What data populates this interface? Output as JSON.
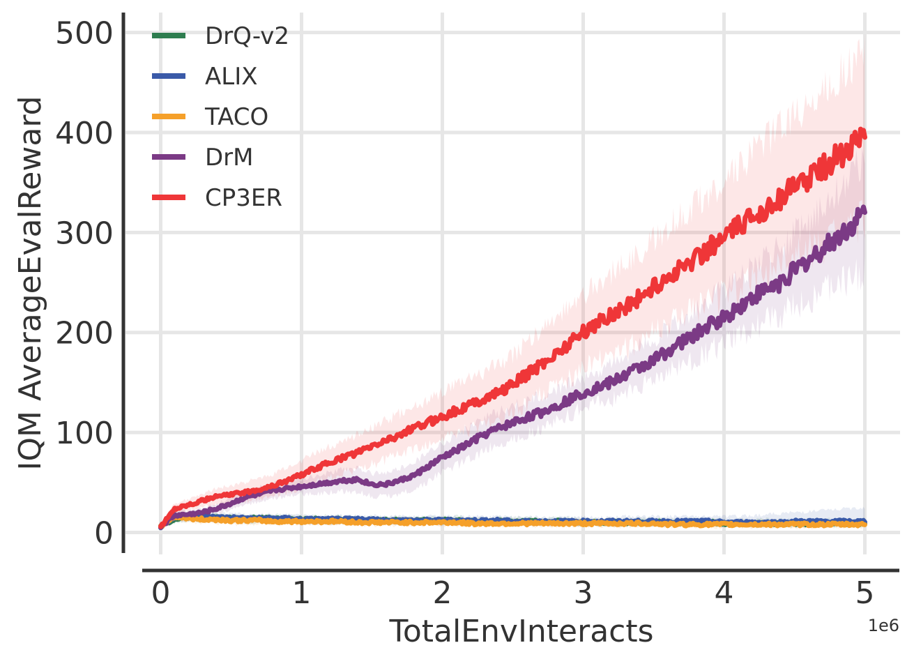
{
  "chart_data": {
    "type": "line",
    "title": "",
    "xlabel": "TotalEnvInteracts",
    "ylabel": "IQM AverageEvalReward",
    "x_offset_label": "1e6",
    "xlim": [
      -0.25,
      5.25
    ],
    "ylim": [
      -22,
      520
    ],
    "x_ticks": [
      0,
      1,
      2,
      3,
      4,
      5
    ],
    "x_tick_labels": [
      "0",
      "1",
      "2",
      "3",
      "4",
      "5"
    ],
    "y_ticks": [
      0,
      100,
      200,
      300,
      400,
      500
    ],
    "y_tick_labels": [
      "0",
      "100",
      "200",
      "300",
      "400",
      "500"
    ],
    "grid": true,
    "legend_position": "top-left",
    "x": [
      0,
      0.1,
      0.2,
      0.3,
      0.4,
      0.5,
      0.6,
      0.7,
      0.8,
      0.9,
      1.0,
      1.1,
      1.2,
      1.3,
      1.4,
      1.5,
      1.6,
      1.7,
      1.8,
      1.9,
      2.0,
      2.1,
      2.2,
      2.3,
      2.4,
      2.5,
      2.6,
      2.7,
      2.8,
      2.9,
      3.0,
      3.1,
      3.2,
      3.3,
      3.4,
      3.5,
      3.6,
      3.7,
      3.8,
      3.9,
      4.0,
      4.1,
      4.2,
      4.3,
      4.4,
      4.5,
      4.6,
      4.7,
      4.8,
      4.9,
      5.0
    ],
    "series": [
      {
        "name": "DrQ-v2",
        "color": "#2e7d4f",
        "values": [
          6,
          14,
          15,
          15,
          15,
          14,
          14,
          14,
          14,
          13,
          13,
          13,
          13,
          13,
          12,
          12,
          12,
          12,
          12,
          12,
          12,
          12,
          11,
          11,
          11,
          11,
          11,
          11,
          11,
          11,
          10,
          10,
          10,
          10,
          10,
          10,
          10,
          10,
          10,
          10,
          9,
          9,
          9,
          9,
          9,
          9,
          9,
          9,
          9,
          9,
          9
        ],
        "lower": [
          4,
          10,
          11,
          11,
          11,
          10,
          10,
          10,
          10,
          10,
          10,
          10,
          9,
          9,
          9,
          9,
          9,
          9,
          9,
          9,
          9,
          9,
          8,
          8,
          8,
          8,
          8,
          8,
          8,
          8,
          7,
          7,
          7,
          7,
          7,
          7,
          7,
          7,
          7,
          7,
          6,
          6,
          6,
          6,
          6,
          6,
          6,
          6,
          6,
          6,
          6
        ],
        "upper": [
          8,
          18,
          19,
          19,
          19,
          18,
          18,
          18,
          18,
          17,
          17,
          17,
          17,
          17,
          16,
          16,
          16,
          16,
          16,
          16,
          16,
          16,
          15,
          15,
          15,
          15,
          15,
          15,
          15,
          15,
          14,
          14,
          14,
          14,
          14,
          14,
          14,
          14,
          14,
          14,
          13,
          13,
          13,
          13,
          13,
          13,
          13,
          13,
          13,
          13,
          13
        ]
      },
      {
        "name": "ALIX",
        "color": "#3a5aa8",
        "values": [
          6,
          15,
          16,
          16,
          15,
          15,
          14,
          14,
          14,
          14,
          13,
          13,
          13,
          13,
          13,
          13,
          12,
          12,
          12,
          12,
          12,
          12,
          12,
          12,
          12,
          11,
          11,
          11,
          11,
          11,
          11,
          11,
          11,
          11,
          11,
          11,
          11,
          11,
          11,
          11,
          10,
          10,
          10,
          10,
          10,
          11,
          11,
          11,
          11,
          11,
          11
        ],
        "lower": [
          4,
          11,
          12,
          12,
          11,
          11,
          10,
          10,
          10,
          10,
          9,
          9,
          9,
          9,
          9,
          9,
          8,
          8,
          8,
          8,
          8,
          8,
          8,
          8,
          8,
          7,
          7,
          7,
          7,
          7,
          7,
          7,
          7,
          7,
          7,
          7,
          7,
          7,
          7,
          7,
          6,
          6,
          6,
          6,
          6,
          6,
          6,
          6,
          6,
          6,
          6
        ],
        "upper": [
          8,
          19,
          20,
          20,
          19,
          19,
          18,
          18,
          18,
          18,
          17,
          17,
          17,
          17,
          17,
          17,
          16,
          16,
          16,
          16,
          16,
          16,
          16,
          16,
          16,
          15,
          15,
          15,
          15,
          15,
          15,
          15,
          15,
          16,
          16,
          16,
          16,
          16,
          16,
          16,
          16,
          16,
          17,
          18,
          19,
          20,
          21,
          22,
          23,
          24,
          25
        ]
      },
      {
        "name": "TACO",
        "color": "#f5a02a",
        "values": [
          6,
          16,
          14,
          13,
          13,
          12,
          12,
          12,
          11,
          11,
          11,
          11,
          11,
          11,
          10,
          10,
          10,
          10,
          10,
          10,
          10,
          10,
          9,
          9,
          9,
          9,
          9,
          9,
          9,
          9,
          9,
          9,
          9,
          9,
          9,
          9,
          8,
          8,
          8,
          8,
          8,
          8,
          8,
          8,
          8,
          8,
          8,
          8,
          8,
          8,
          8
        ],
        "lower": [
          4,
          12,
          10,
          9,
          9,
          8,
          8,
          8,
          8,
          8,
          8,
          8,
          8,
          8,
          7,
          7,
          7,
          7,
          7,
          7,
          7,
          7,
          6,
          6,
          6,
          6,
          6,
          6,
          6,
          6,
          6,
          6,
          6,
          6,
          6,
          6,
          5,
          5,
          5,
          5,
          5,
          5,
          5,
          5,
          5,
          5,
          5,
          5,
          5,
          5,
          5
        ],
        "upper": [
          8,
          20,
          18,
          17,
          17,
          16,
          16,
          16,
          15,
          15,
          15,
          15,
          15,
          15,
          14,
          14,
          14,
          14,
          14,
          14,
          14,
          14,
          13,
          13,
          13,
          13,
          13,
          13,
          13,
          13,
          13,
          13,
          13,
          13,
          13,
          13,
          12,
          12,
          12,
          12,
          12,
          12,
          12,
          12,
          12,
          12,
          12,
          12,
          12,
          12,
          12
        ]
      },
      {
        "name": "DrM",
        "color": "#7b3a85",
        "values": [
          6,
          17,
          18,
          20,
          24,
          29,
          35,
          38,
          42,
          44,
          46,
          48,
          50,
          52,
          53,
          48,
          48,
          52,
          57,
          66,
          75,
          82,
          90,
          98,
          104,
          110,
          115,
          120,
          126,
          133,
          140,
          145,
          150,
          158,
          165,
          172,
          182,
          190,
          198,
          208,
          215,
          225,
          235,
          243,
          250,
          262,
          272,
          283,
          295,
          306,
          320
        ],
        "lower": [
          4,
          13,
          14,
          16,
          19,
          23,
          28,
          31,
          34,
          36,
          38,
          39,
          40,
          41,
          41,
          36,
          36,
          39,
          43,
          51,
          60,
          67,
          74,
          82,
          88,
          94,
          99,
          104,
          110,
          117,
          124,
          129,
          133,
          140,
          146,
          152,
          160,
          167,
          174,
          182,
          188,
          196,
          204,
          211,
          217,
          226,
          233,
          240,
          248,
          254,
          260
        ],
        "upper": [
          8,
          21,
          22,
          24,
          29,
          35,
          42,
          45,
          50,
          52,
          54,
          57,
          60,
          63,
          64,
          59,
          59,
          64,
          70,
          80,
          90,
          97,
          106,
          114,
          120,
          126,
          131,
          136,
          142,
          149,
          156,
          161,
          168,
          177,
          185,
          193,
          204,
          213,
          222,
          234,
          242,
          254,
          266,
          276,
          284,
          298,
          311,
          326,
          342,
          358,
          376
        ]
      },
      {
        "name": "CP3ER",
        "color": "#ef3638",
        "values": [
          6,
          24,
          28,
          32,
          36,
          38,
          40,
          43,
          47,
          52,
          58,
          64,
          70,
          75,
          80,
          86,
          92,
          98,
          104,
          110,
          116,
          122,
          128,
          134,
          140,
          148,
          158,
          168,
          178,
          190,
          200,
          210,
          218,
          226,
          235,
          245,
          255,
          265,
          275,
          285,
          295,
          305,
          315,
          325,
          335,
          345,
          355,
          365,
          375,
          385,
          400
        ],
        "lower": [
          4,
          19,
          22,
          25,
          28,
          29,
          31,
          33,
          36,
          40,
          45,
          50,
          55,
          59,
          63,
          68,
          73,
          78,
          83,
          88,
          93,
          98,
          103,
          108,
          113,
          120,
          128,
          137,
          145,
          155,
          164,
          172,
          179,
          185,
          192,
          200,
          208,
          216,
          223,
          231,
          238,
          246,
          253,
          260,
          267,
          274,
          281,
          288,
          295,
          302,
          312
        ],
        "upper": [
          8,
          29,
          34,
          39,
          44,
          47,
          50,
          54,
          59,
          65,
          72,
          79,
          86,
          92,
          98,
          105,
          112,
          119,
          126,
          133,
          140,
          147,
          154,
          161,
          168,
          177,
          189,
          201,
          213,
          227,
          238,
          250,
          259,
          269,
          280,
          292,
          304,
          316,
          328,
          340,
          353,
          365,
          378,
          391,
          404,
          417,
          430,
          442,
          454,
          466,
          480
        ]
      }
    ]
  }
}
